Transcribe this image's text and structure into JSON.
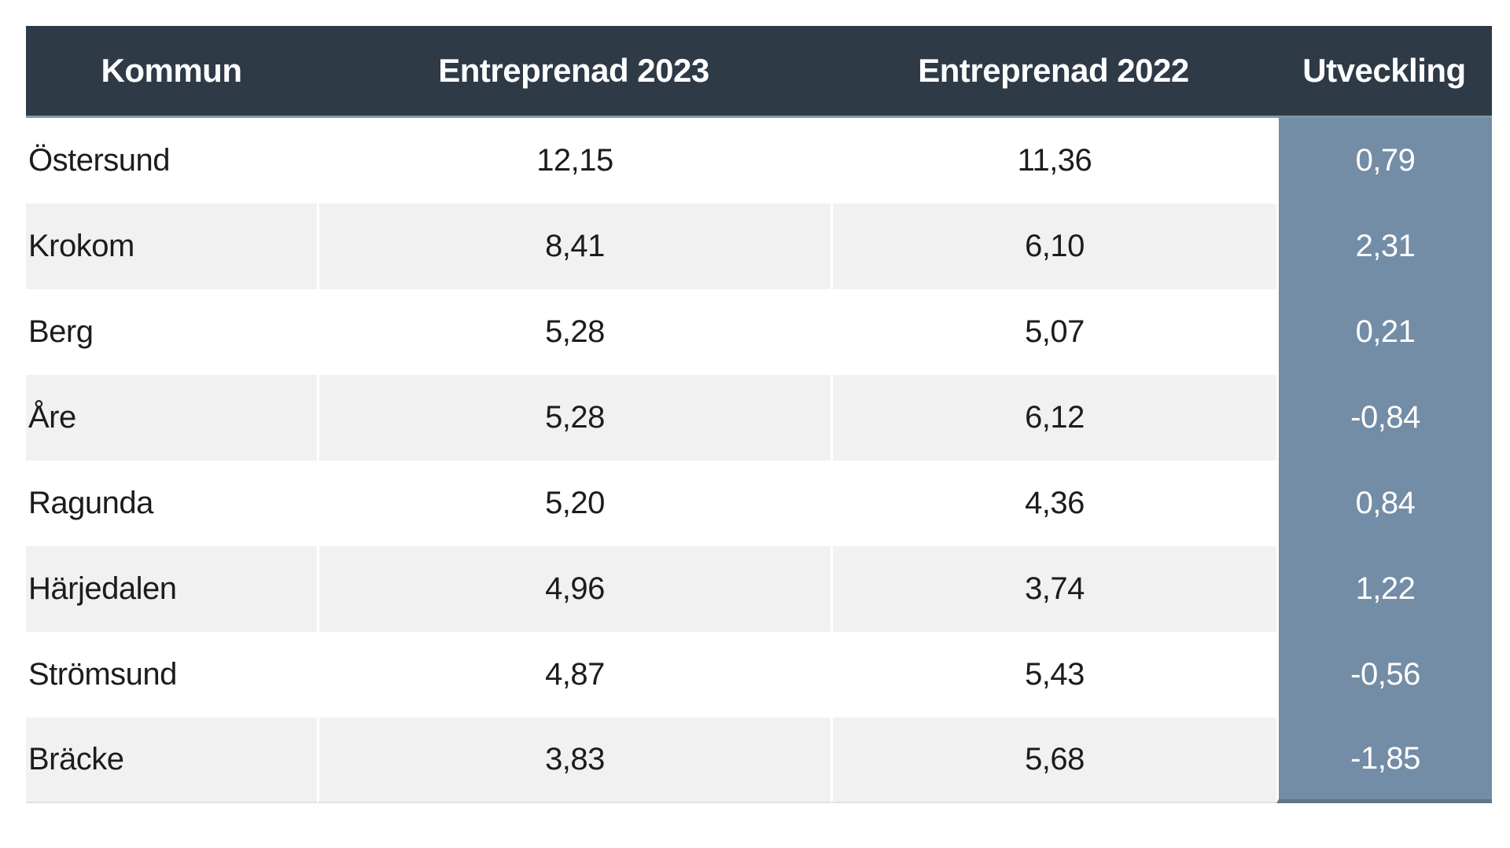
{
  "table": {
    "columns": [
      {
        "label": "Kommun"
      },
      {
        "label": "Entreprenad 2023"
      },
      {
        "label": "Entreprenad 2022"
      },
      {
        "label": "Utveckling"
      }
    ],
    "rows": [
      {
        "kommun": "Östersund",
        "e2023": "12,15",
        "e2022": "11,36",
        "utveckling": "0,79"
      },
      {
        "kommun": "Krokom",
        "e2023": "8,41",
        "e2022": "6,10",
        "utveckling": "2,31"
      },
      {
        "kommun": "Berg",
        "e2023": "5,28",
        "e2022": "5,07",
        "utveckling": "0,21"
      },
      {
        "kommun": "Åre",
        "e2023": "5,28",
        "e2022": "6,12",
        "utveckling": "-0,84"
      },
      {
        "kommun": "Ragunda",
        "e2023": "5,20",
        "e2022": "4,36",
        "utveckling": "0,84"
      },
      {
        "kommun": "Härjedalen",
        "e2023": "4,96",
        "e2022": "3,74",
        "utveckling": "1,22"
      },
      {
        "kommun": "Strömsund",
        "e2023": "4,87",
        "e2022": "5,43",
        "utveckling": "-0,56"
      },
      {
        "kommun": "Bräcke",
        "e2023": "3,83",
        "e2022": "5,68",
        "utveckling": "-1,85"
      }
    ]
  },
  "colors": {
    "header_bg": "#2e3a46",
    "header_text": "#ffffff",
    "accent_column_bg": "#748da6",
    "accent_column_text": "#ffffff",
    "row_alt_bg": "#f1f1f1",
    "row_bg": "#ffffff",
    "body_text": "#1c1c1c"
  },
  "chart_data": {
    "type": "table",
    "categories": [
      "Östersund",
      "Krokom",
      "Berg",
      "Åre",
      "Ragunda",
      "Härjedalen",
      "Strömsund",
      "Bräcke"
    ],
    "series": [
      {
        "name": "Entreprenad 2023",
        "values": [
          12.15,
          8.41,
          5.28,
          5.28,
          5.2,
          4.96,
          4.87,
          3.83
        ]
      },
      {
        "name": "Entreprenad 2022",
        "values": [
          11.36,
          6.1,
          5.07,
          6.12,
          4.36,
          3.74,
          5.43,
          5.68
        ]
      },
      {
        "name": "Utveckling",
        "values": [
          0.79,
          2.31,
          0.21,
          -0.84,
          0.84,
          1.22,
          -0.56,
          -1.85
        ]
      }
    ],
    "title": "",
    "xlabel": "Kommun",
    "ylabel": "",
    "legend_position": "none",
    "grid": false
  }
}
